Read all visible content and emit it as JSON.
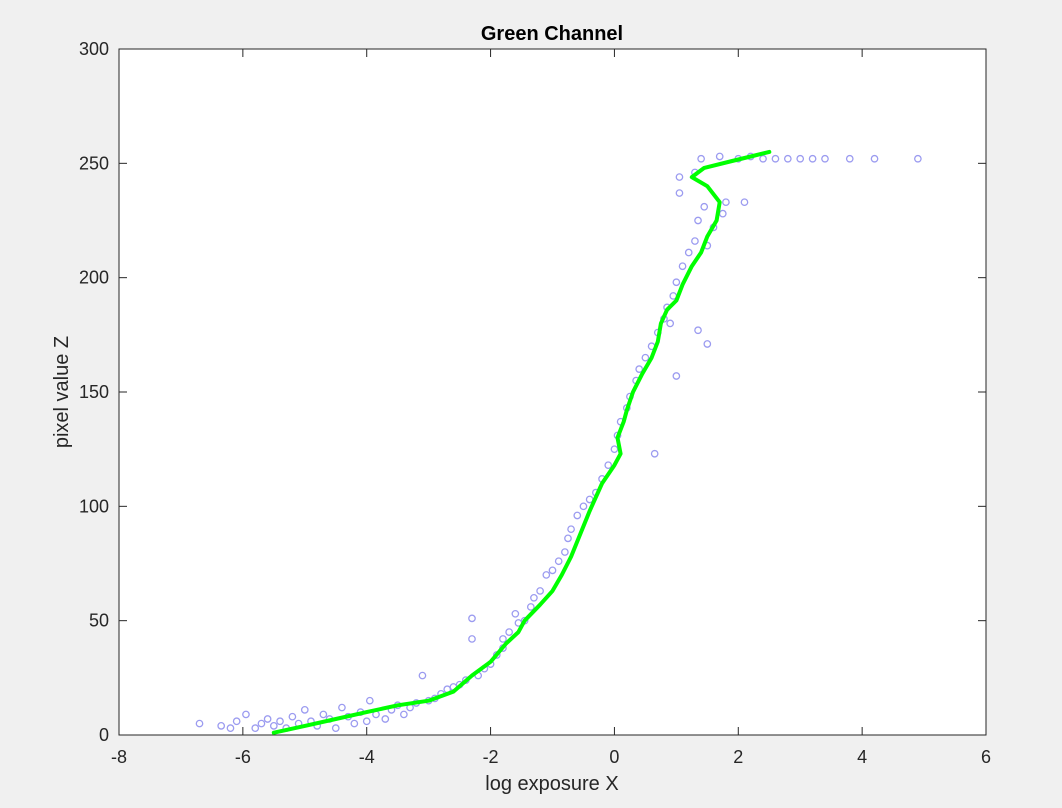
{
  "chart_data": {
    "type": "scatter",
    "title": "Green Channel",
    "xlabel": "log exposure X",
    "ylabel": "pixel value Z",
    "xlim": [
      -8,
      6
    ],
    "ylim": [
      0,
      300
    ],
    "xticks": [
      "-8",
      "-6",
      "-4",
      "-2",
      "0",
      "2",
      "4",
      "6"
    ],
    "yticks": [
      "0",
      "50",
      "100",
      "150",
      "200",
      "250",
      "300"
    ],
    "grid": false,
    "colors": {
      "background": "#f0f0f0",
      "axes_background": "#ffffff",
      "points": "#9b9bf0",
      "curve": "#00ff00",
      "axis": "#262626"
    },
    "series": [
      {
        "type": "scatter",
        "marker": "circle-open",
        "points": [
          [
            -6.7,
            5
          ],
          [
            -6.35,
            4
          ],
          [
            -6.2,
            3
          ],
          [
            -6.1,
            6
          ],
          [
            -5.95,
            9
          ],
          [
            -5.8,
            3
          ],
          [
            -5.7,
            5
          ],
          [
            -5.6,
            7
          ],
          [
            -5.5,
            4
          ],
          [
            -5.4,
            6
          ],
          [
            -5.3,
            3
          ],
          [
            -5.2,
            8
          ],
          [
            -5.1,
            5
          ],
          [
            -5.0,
            11
          ],
          [
            -4.9,
            6
          ],
          [
            -4.8,
            4
          ],
          [
            -4.7,
            9
          ],
          [
            -4.6,
            7
          ],
          [
            -4.5,
            3
          ],
          [
            -4.4,
            12
          ],
          [
            -4.3,
            8
          ],
          [
            -4.2,
            5
          ],
          [
            -4.1,
            10
          ],
          [
            -4.0,
            6
          ],
          [
            -3.95,
            15
          ],
          [
            -3.85,
            9
          ],
          [
            -3.7,
            7
          ],
          [
            -3.6,
            11
          ],
          [
            -3.5,
            13
          ],
          [
            -3.4,
            9
          ],
          [
            -3.3,
            12
          ],
          [
            -3.2,
            14
          ],
          [
            -3.1,
            26
          ],
          [
            -3.0,
            15
          ],
          [
            -2.9,
            16
          ],
          [
            -2.8,
            18
          ],
          [
            -2.7,
            20
          ],
          [
            -2.6,
            21
          ],
          [
            -2.5,
            22
          ],
          [
            -2.4,
            24
          ],
          [
            -2.3,
            51
          ],
          [
            -2.3,
            42
          ],
          [
            -2.2,
            26
          ],
          [
            -2.1,
            29
          ],
          [
            -2.0,
            31
          ],
          [
            -1.9,
            35
          ],
          [
            -1.8,
            38
          ],
          [
            -1.8,
            42
          ],
          [
            -1.7,
            45
          ],
          [
            -1.6,
            53
          ],
          [
            -1.55,
            49
          ],
          [
            -1.45,
            50
          ],
          [
            -1.35,
            56
          ],
          [
            -1.3,
            60
          ],
          [
            -1.2,
            63
          ],
          [
            -1.1,
            70
          ],
          [
            -1.0,
            72
          ],
          [
            -0.9,
            76
          ],
          [
            -0.8,
            80
          ],
          [
            -0.75,
            86
          ],
          [
            -0.7,
            90
          ],
          [
            -0.6,
            96
          ],
          [
            -0.5,
            100
          ],
          [
            -0.4,
            103
          ],
          [
            -0.3,
            106
          ],
          [
            -0.2,
            112
          ],
          [
            -0.1,
            118
          ],
          [
            0.0,
            125
          ],
          [
            0.05,
            131
          ],
          [
            0.1,
            137
          ],
          [
            0.2,
            143
          ],
          [
            0.25,
            148
          ],
          [
            0.35,
            155
          ],
          [
            0.4,
            160
          ],
          [
            0.5,
            165
          ],
          [
            0.6,
            170
          ],
          [
            0.7,
            176
          ],
          [
            0.8,
            182
          ],
          [
            0.85,
            187
          ],
          [
            0.95,
            192
          ],
          [
            1.0,
            198
          ],
          [
            1.1,
            205
          ],
          [
            1.2,
            211
          ],
          [
            1.3,
            216
          ],
          [
            1.35,
            225
          ],
          [
            1.45,
            231
          ],
          [
            1.5,
            214
          ],
          [
            1.6,
            222
          ],
          [
            1.75,
            228
          ],
          [
            1.8,
            233
          ],
          [
            1.0,
            157
          ],
          [
            0.9,
            180
          ],
          [
            1.5,
            171
          ],
          [
            0.65,
            123
          ],
          [
            1.35,
            177
          ],
          [
            1.05,
            244
          ],
          [
            1.05,
            237
          ],
          [
            1.3,
            246
          ],
          [
            2.1,
            233
          ],
          [
            2.0,
            252
          ],
          [
            2.2,
            253
          ],
          [
            2.4,
            252
          ],
          [
            2.6,
            252
          ],
          [
            2.8,
            252
          ],
          [
            3.0,
            252
          ],
          [
            3.2,
            252
          ],
          [
            3.4,
            252
          ],
          [
            3.8,
            252
          ],
          [
            4.2,
            252
          ],
          [
            4.9,
            252
          ],
          [
            1.4,
            252
          ],
          [
            1.7,
            253
          ]
        ]
      },
      {
        "type": "line",
        "points": [
          [
            -5.5,
            1
          ],
          [
            -5.0,
            4
          ],
          [
            -4.5,
            7
          ],
          [
            -4.0,
            10
          ],
          [
            -3.5,
            13
          ],
          [
            -3.0,
            15
          ],
          [
            -2.6,
            19
          ],
          [
            -2.3,
            26
          ],
          [
            -2.0,
            32
          ],
          [
            -1.75,
            40
          ],
          [
            -1.55,
            45
          ],
          [
            -1.45,
            50
          ],
          [
            -1.2,
            57
          ],
          [
            -1.0,
            63
          ],
          [
            -0.85,
            70
          ],
          [
            -0.7,
            78
          ],
          [
            -0.55,
            88
          ],
          [
            -0.4,
            98
          ],
          [
            -0.2,
            110
          ],
          [
            0.0,
            118
          ],
          [
            0.1,
            123
          ],
          [
            0.05,
            130
          ],
          [
            0.15,
            137
          ],
          [
            0.2,
            142
          ],
          [
            0.3,
            150
          ],
          [
            0.45,
            158
          ],
          [
            0.6,
            165
          ],
          [
            0.7,
            172
          ],
          [
            0.75,
            180
          ],
          [
            0.85,
            186
          ],
          [
            1.0,
            190
          ],
          [
            1.1,
            197
          ],
          [
            1.25,
            205
          ],
          [
            1.4,
            211
          ],
          [
            1.5,
            218
          ],
          [
            1.65,
            225
          ],
          [
            1.7,
            233
          ],
          [
            1.5,
            240
          ],
          [
            1.25,
            244
          ],
          [
            1.45,
            248
          ],
          [
            1.9,
            251
          ],
          [
            2.2,
            253
          ],
          [
            2.5,
            255
          ]
        ]
      }
    ]
  }
}
